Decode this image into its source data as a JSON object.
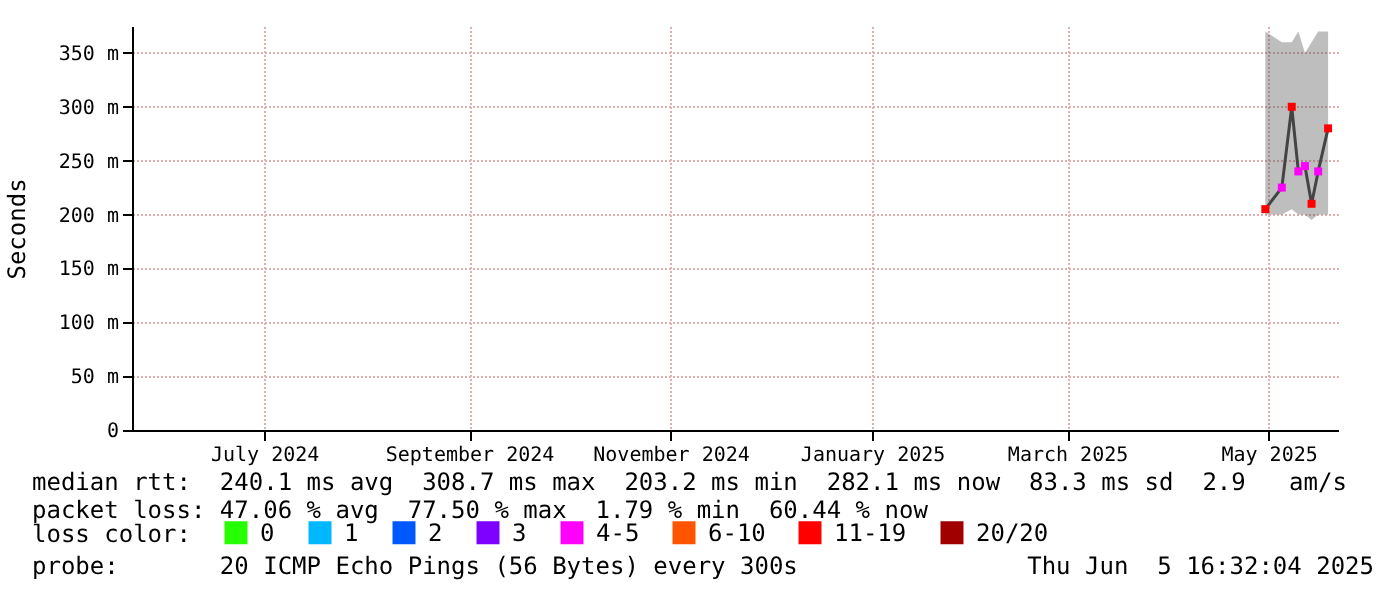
{
  "chart_data": {
    "type": "line",
    "ylabel": "Seconds",
    "legend_title": "loss color:",
    "legend": "bottom",
    "grid": true,
    "x": [
      "2025-05-14",
      "2025-05-19",
      "2025-05-22",
      "2025-05-24",
      "2025-05-26",
      "2025-05-28",
      "2025-05-30",
      "2025-06-02"
    ],
    "xlim": [
      "2024-06-05",
      "2025-06-05"
    ],
    "xticks": [
      {
        "value": "2024-07-15",
        "label": "July 2024"
      },
      {
        "value": "2024-09-15",
        "label": "September 2024"
      },
      {
        "value": "2024-11-15",
        "label": "November 2024"
      },
      {
        "value": "2025-01-15",
        "label": "January 2025"
      },
      {
        "value": "2025-03-15",
        "label": "March 2025"
      },
      {
        "value": "2025-05-15",
        "label": "May 2025"
      }
    ],
    "ylim": [
      0,
      375
    ],
    "yticks": [
      0,
      {
        "value": 50,
        "label": "50 m"
      },
      {
        "value": 100,
        "label": "100 m"
      },
      {
        "value": 150,
        "label": "150 m"
      },
      {
        "value": 200,
        "label": "200 m"
      },
      {
        "value": 250,
        "label": "250 m"
      },
      {
        "value": 300,
        "label": "300 m"
      },
      {
        "value": 350,
        "label": "350 m"
      }
    ],
    "series": [
      {
        "color": "#444444",
        "marker": "none",
        "values": [
          205,
          225,
          300,
          240,
          245,
          210,
          240,
          280
        ],
        "lower": [
          200,
          200,
          205,
          200,
          200,
          195,
          200,
          200
        ],
        "upper": [
          370,
          360,
          360,
          370,
          350,
          360,
          370,
          370
        ]
      },
      {
        "type": "scatter",
        "marker": "square",
        "name": "0",
        "color": "#26ff00",
        "values": [
          null,
          null,
          null,
          null,
          null,
          null,
          null,
          null
        ]
      },
      {
        "type": "scatter",
        "marker": "square",
        "name": "1",
        "color": "#00b8ff",
        "values": [
          null,
          null,
          null,
          null,
          null,
          null,
          null,
          null
        ]
      },
      {
        "type": "scatter",
        "marker": "square",
        "name": "2",
        "color": "#0059ff",
        "values": [
          null,
          null,
          null,
          null,
          null,
          null,
          null,
          null
        ]
      },
      {
        "type": "scatter",
        "marker": "square",
        "name": "3",
        "color": "#7e00ff",
        "values": [
          null,
          null,
          null,
          null,
          null,
          null,
          null,
          null
        ]
      },
      {
        "type": "scatter",
        "marker": "square",
        "name": "4-5",
        "color": "#ff00ff",
        "values": [
          null,
          225,
          null,
          240,
          245,
          null,
          240,
          null
        ]
      },
      {
        "type": "scatter",
        "marker": "square",
        "name": "6-10",
        "color": "#ff5500",
        "values": [
          null,
          null,
          null,
          null,
          null,
          null,
          null,
          null
        ]
      },
      {
        "type": "scatter",
        "marker": "square",
        "name": "11-19",
        "color": "#ff0000",
        "values": [
          205,
          null,
          300,
          null,
          null,
          210,
          null,
          280
        ]
      },
      {
        "type": "scatter",
        "marker": "square",
        "name": "20/20",
        "color": "#a10000",
        "values": [
          null,
          null,
          null,
          null,
          null,
          null,
          null,
          null
        ]
      }
    ],
    "annotations": [
      "median rtt:  240.1 ms avg  308.7 ms max  203.2 ms min  282.1 ms now  83.3 ms sd  2.9   am/s",
      "packet loss: 47.06 % avg  77.50 % max  1.79 % min  60.44 % now",
      "probe:       20 ICMP Echo Pings (56 Bytes) every 300s",
      "Thu Jun  5 16:32:04 2025"
    ]
  }
}
